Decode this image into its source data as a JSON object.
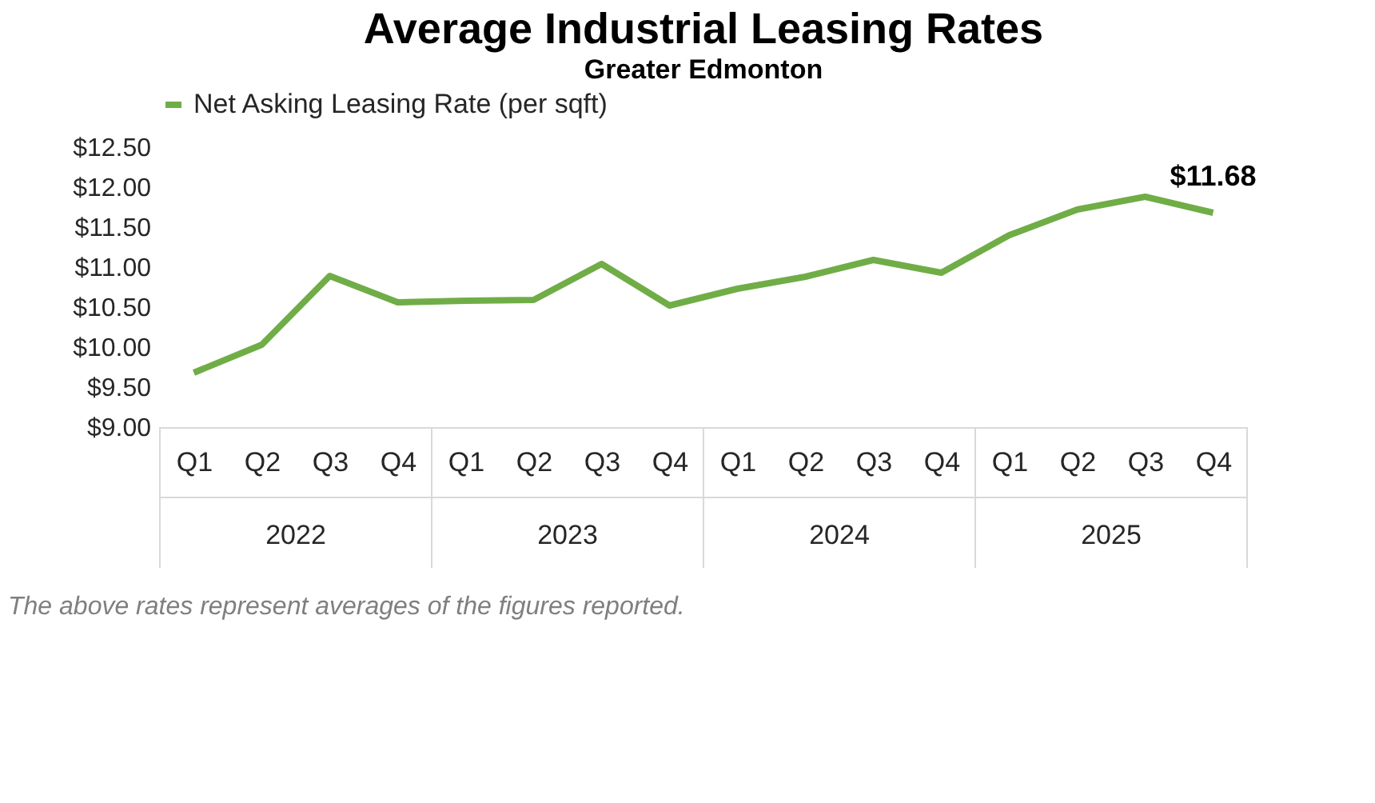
{
  "chart_data": {
    "type": "line",
    "title": "Average Industrial Leasing Rates",
    "subtitle": "Greater Edmonton",
    "categories": [
      "Q1",
      "Q2",
      "Q3",
      "Q4",
      "Q1",
      "Q2",
      "Q3",
      "Q4",
      "Q1",
      "Q2",
      "Q3",
      "Q4",
      "Q1",
      "Q2",
      "Q3",
      "Q4"
    ],
    "series": [
      {
        "name": "Net Asking Leasing Rate (per sqft)",
        "color": "#70ad47",
        "values": [
          9.68,
          10.03,
          10.89,
          10.56,
          10.58,
          10.59,
          11.04,
          10.52,
          10.73,
          10.88,
          11.09,
          10.93,
          11.4,
          11.72,
          11.88,
          11.68
        ],
        "value_labels": [
          null,
          null,
          null,
          null,
          null,
          null,
          null,
          null,
          null,
          null,
          null,
          null,
          null,
          null,
          null,
          "$11.68"
        ]
      }
    ],
    "ylim": [
      9.0,
      12.5
    ],
    "yticks": [
      {
        "value": 9.0,
        "label": "$9.00"
      },
      {
        "value": 9.5,
        "label": "$9.50"
      },
      {
        "value": 10.0,
        "label": "$10.00"
      },
      {
        "value": 10.5,
        "label": "$10.50"
      },
      {
        "value": 11.0,
        "label": "$11.00"
      },
      {
        "value": 11.5,
        "label": "$11.50"
      },
      {
        "value": 12.0,
        "label": "$12.00"
      },
      {
        "value": 12.5,
        "label": "$12.50"
      }
    ],
    "annotations": [
      "2022",
      "2023",
      "2024",
      "2025",
      "The above rates represent averages of the figures reported."
    ],
    "legend": "top",
    "grid": false,
    "marker": "none",
    "line_style": "solid"
  }
}
